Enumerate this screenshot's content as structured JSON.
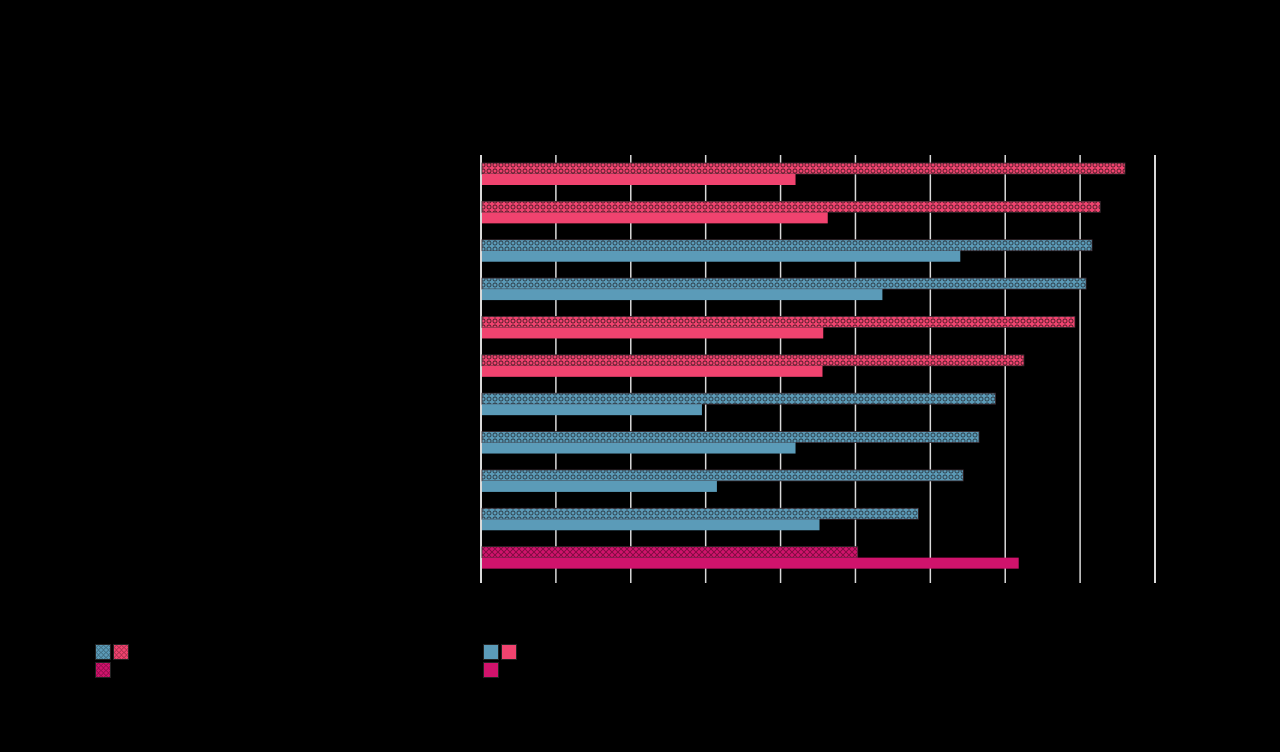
{
  "chart_data": {
    "type": "bar",
    "orientation": "horizontal",
    "title": "",
    "xlabel": "",
    "ylabel": "",
    "xlim": [
      0,
      9
    ],
    "grid": true,
    "colors": {
      "blue": "#5b9bb8",
      "red": "#f0436f",
      "magenta": "#d0136c",
      "background": "#000000",
      "gridline": "#d9d9d9"
    },
    "bars": [
      {
        "patterned": 8.6,
        "solid": 4.2,
        "color": "red"
      },
      {
        "patterned": 8.27,
        "solid": 4.63,
        "color": "red"
      },
      {
        "patterned": 8.16,
        "solid": 6.4,
        "color": "blue"
      },
      {
        "patterned": 8.08,
        "solid": 5.36,
        "color": "blue"
      },
      {
        "patterned": 7.93,
        "solid": 4.57,
        "color": "red"
      },
      {
        "patterned": 7.25,
        "solid": 4.56,
        "color": "red"
      },
      {
        "patterned": 6.87,
        "solid": 2.95,
        "color": "blue"
      },
      {
        "patterned": 6.65,
        "solid": 4.2,
        "color": "blue"
      },
      {
        "patterned": 6.44,
        "solid": 3.15,
        "color": "blue"
      },
      {
        "patterned": 5.84,
        "solid": 4.52,
        "color": "blue"
      },
      {
        "patterned": 5.03,
        "solid": 7.18,
        "color": "magenta"
      }
    ],
    "legend": [
      {
        "group": "patterned",
        "swatches": [
          "blue",
          "red",
          "magenta"
        ]
      },
      {
        "group": "solid",
        "swatches": [
          "blue",
          "red",
          "magenta"
        ]
      }
    ]
  }
}
